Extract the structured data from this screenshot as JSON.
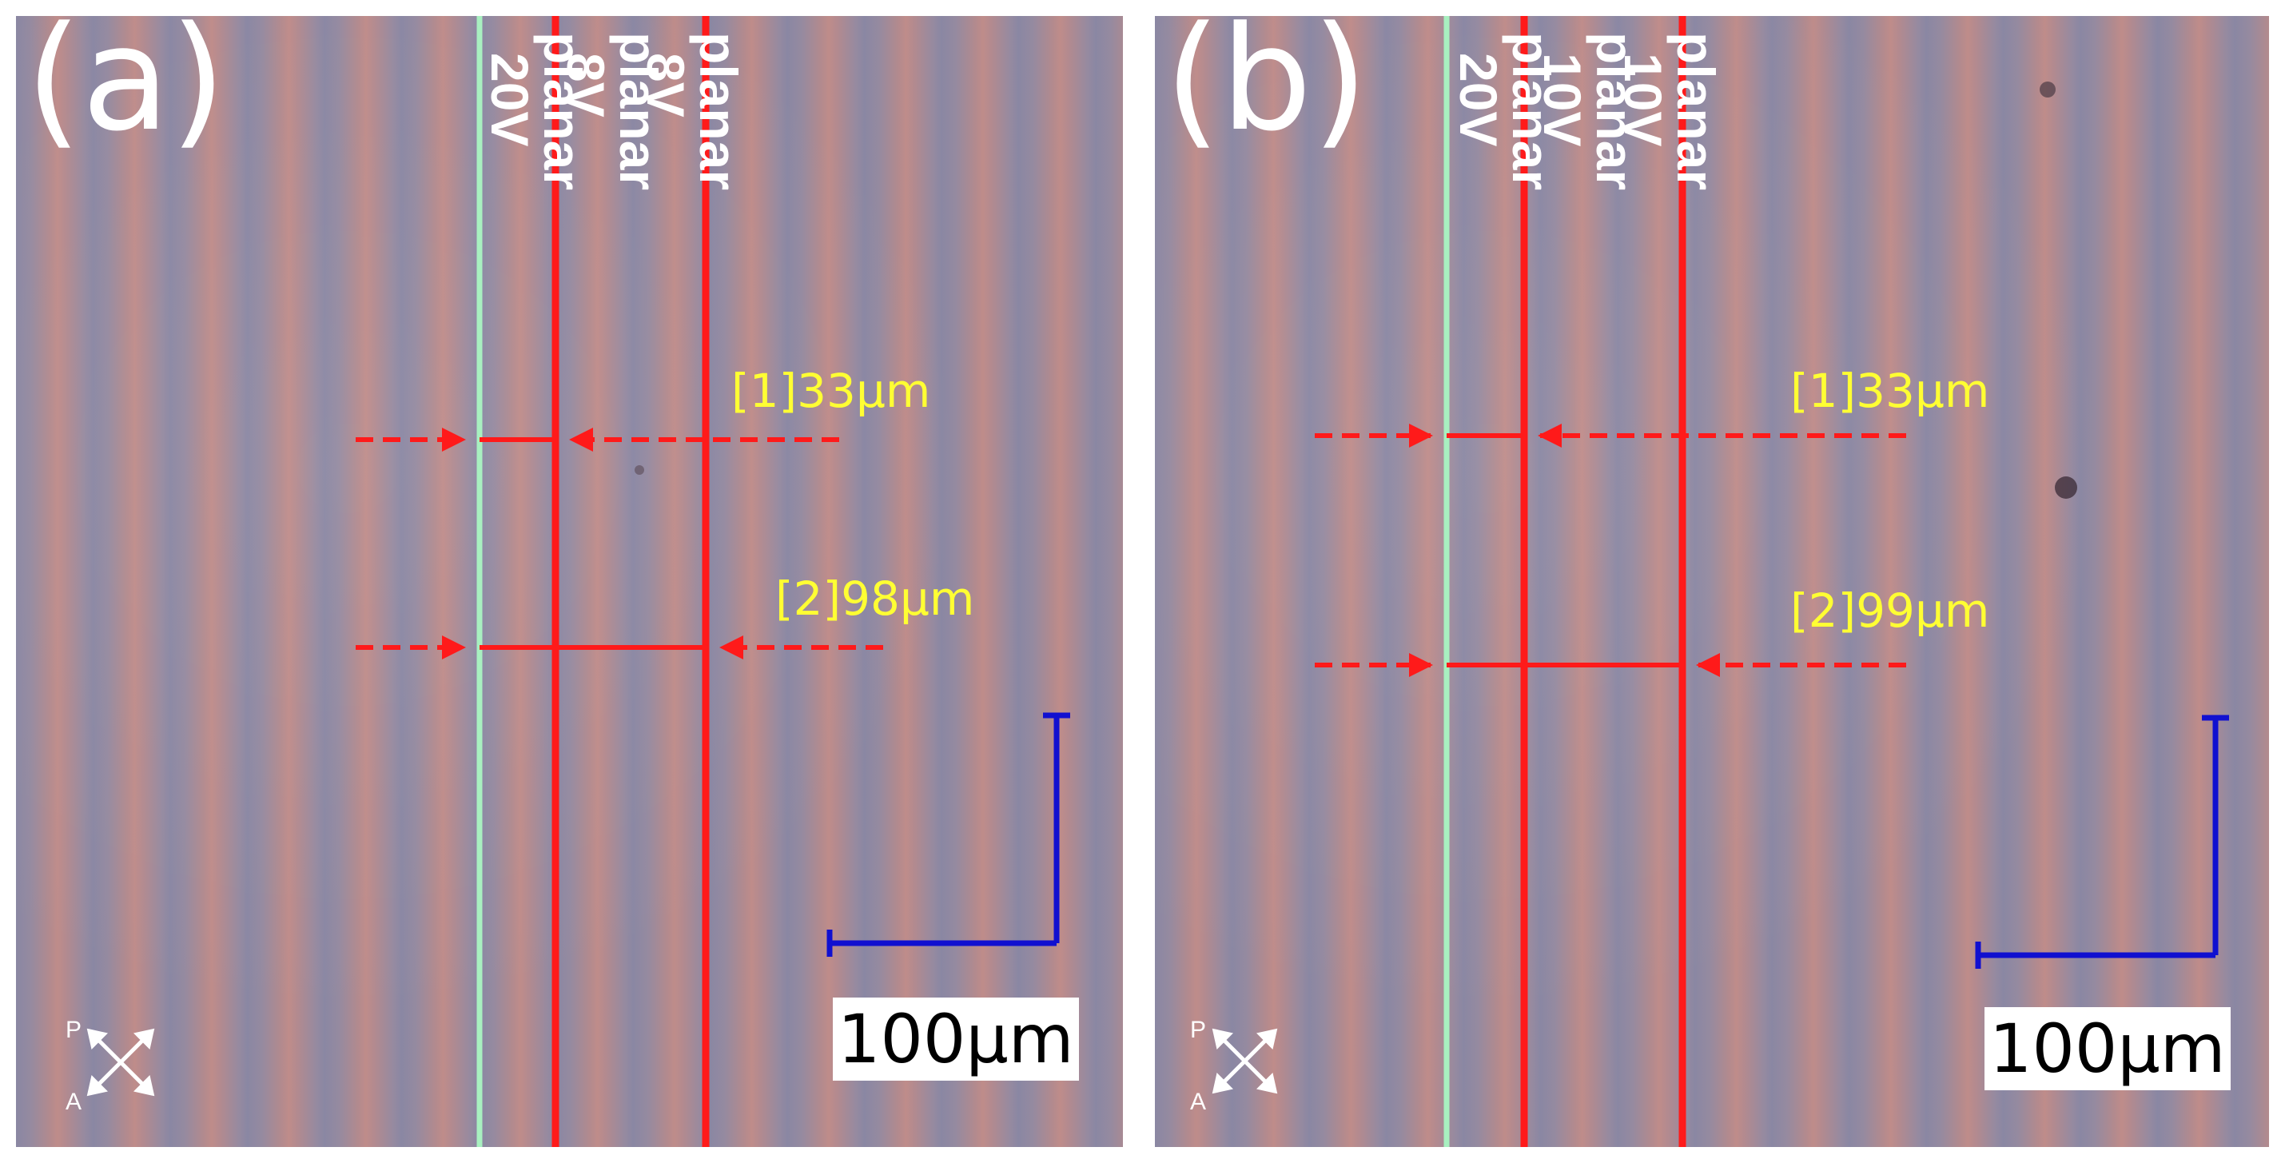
{
  "panels": [
    {
      "id": "a",
      "label": "(a)",
      "lines": [
        {
          "top": "planar",
          "bottom": "20V"
        },
        {
          "top": "planar",
          "bottom": "8V"
        },
        {
          "top": "planar",
          "bottom": "8V"
        }
      ],
      "measurements": [
        "[1]33μm",
        "[2]98μm"
      ],
      "scale_bar": "100μm",
      "polarizer_label": "P",
      "analyzer_label": "A"
    },
    {
      "id": "b",
      "label": "(b)",
      "lines": [
        {
          "top": "planar",
          "bottom": "20V"
        },
        {
          "top": "planar",
          "bottom": "10V"
        },
        {
          "top": "planar",
          "bottom": "10V"
        }
      ],
      "measurements": [
        "[1]33μm",
        "[2]99μm"
      ],
      "scale_bar": "100μm",
      "polarizer_label": "P",
      "analyzer_label": "A"
    }
  ],
  "colors": {
    "boundary_line_green": "#a8f0c0",
    "boundary_line_red": "#ff1a1a",
    "measurement_text": "#ffff33",
    "scale_bar": "#1010d0"
  }
}
